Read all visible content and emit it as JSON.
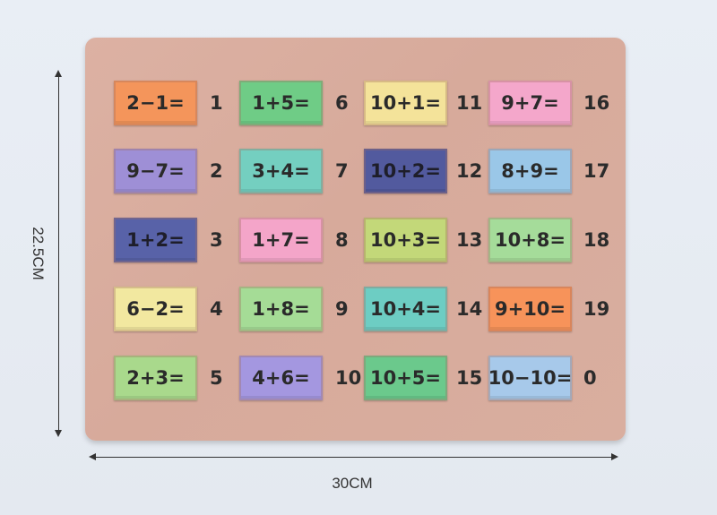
{
  "dimensions": {
    "height_label": "22.5CM",
    "width_label": "30CM"
  },
  "columns": [
    {
      "tiles": [
        {
          "equation": "2−1=",
          "answer": "1",
          "color": "#f4955b"
        },
        {
          "equation": "9−7=",
          "answer": "2",
          "color": "#9e8fd6"
        },
        {
          "equation": "1+2=",
          "answer": "3",
          "color": "#5862a8"
        },
        {
          "equation": "6−2=",
          "answer": "4",
          "color": "#f2e8a0"
        },
        {
          "equation": "2+3=",
          "answer": "5",
          "color": "#a9d98c"
        }
      ]
    },
    {
      "tiles": [
        {
          "equation": "1+5=",
          "answer": "6",
          "color": "#6fcc86"
        },
        {
          "equation": "3+4=",
          "answer": "7",
          "color": "#74cfc0"
        },
        {
          "equation": "1+7=",
          "answer": "8",
          "color": "#f4a5c9"
        },
        {
          "equation": "1+8=",
          "answer": "9",
          "color": "#a5dc96"
        },
        {
          "equation": "4+6=",
          "answer": "10",
          "color": "#a497e0"
        }
      ]
    },
    {
      "tiles": [
        {
          "equation": "10+1=",
          "answer": "11",
          "color": "#f4e39a"
        },
        {
          "equation": "10+2=",
          "answer": "12",
          "color": "#525a9e"
        },
        {
          "equation": "10+3=",
          "answer": "13",
          "color": "#c3d879"
        },
        {
          "equation": "10+4=",
          "answer": "14",
          "color": "#6dcdc3"
        },
        {
          "equation": "10+5=",
          "answer": "15",
          "color": "#6bc98c"
        }
      ]
    },
    {
      "tiles": [
        {
          "equation": "9+7=",
          "answer": "16",
          "color": "#f4a7cb"
        },
        {
          "equation": "8+9=",
          "answer": "17",
          "color": "#9ac7e8"
        },
        {
          "equation": "10+8=",
          "answer": "18",
          "color": "#a5dc9a"
        },
        {
          "equation": "9+10=",
          "answer": "19",
          "color": "#f7935a"
        },
        {
          "equation": "10−10=",
          "answer": "0",
          "color": "#a7c9ea"
        }
      ]
    }
  ]
}
